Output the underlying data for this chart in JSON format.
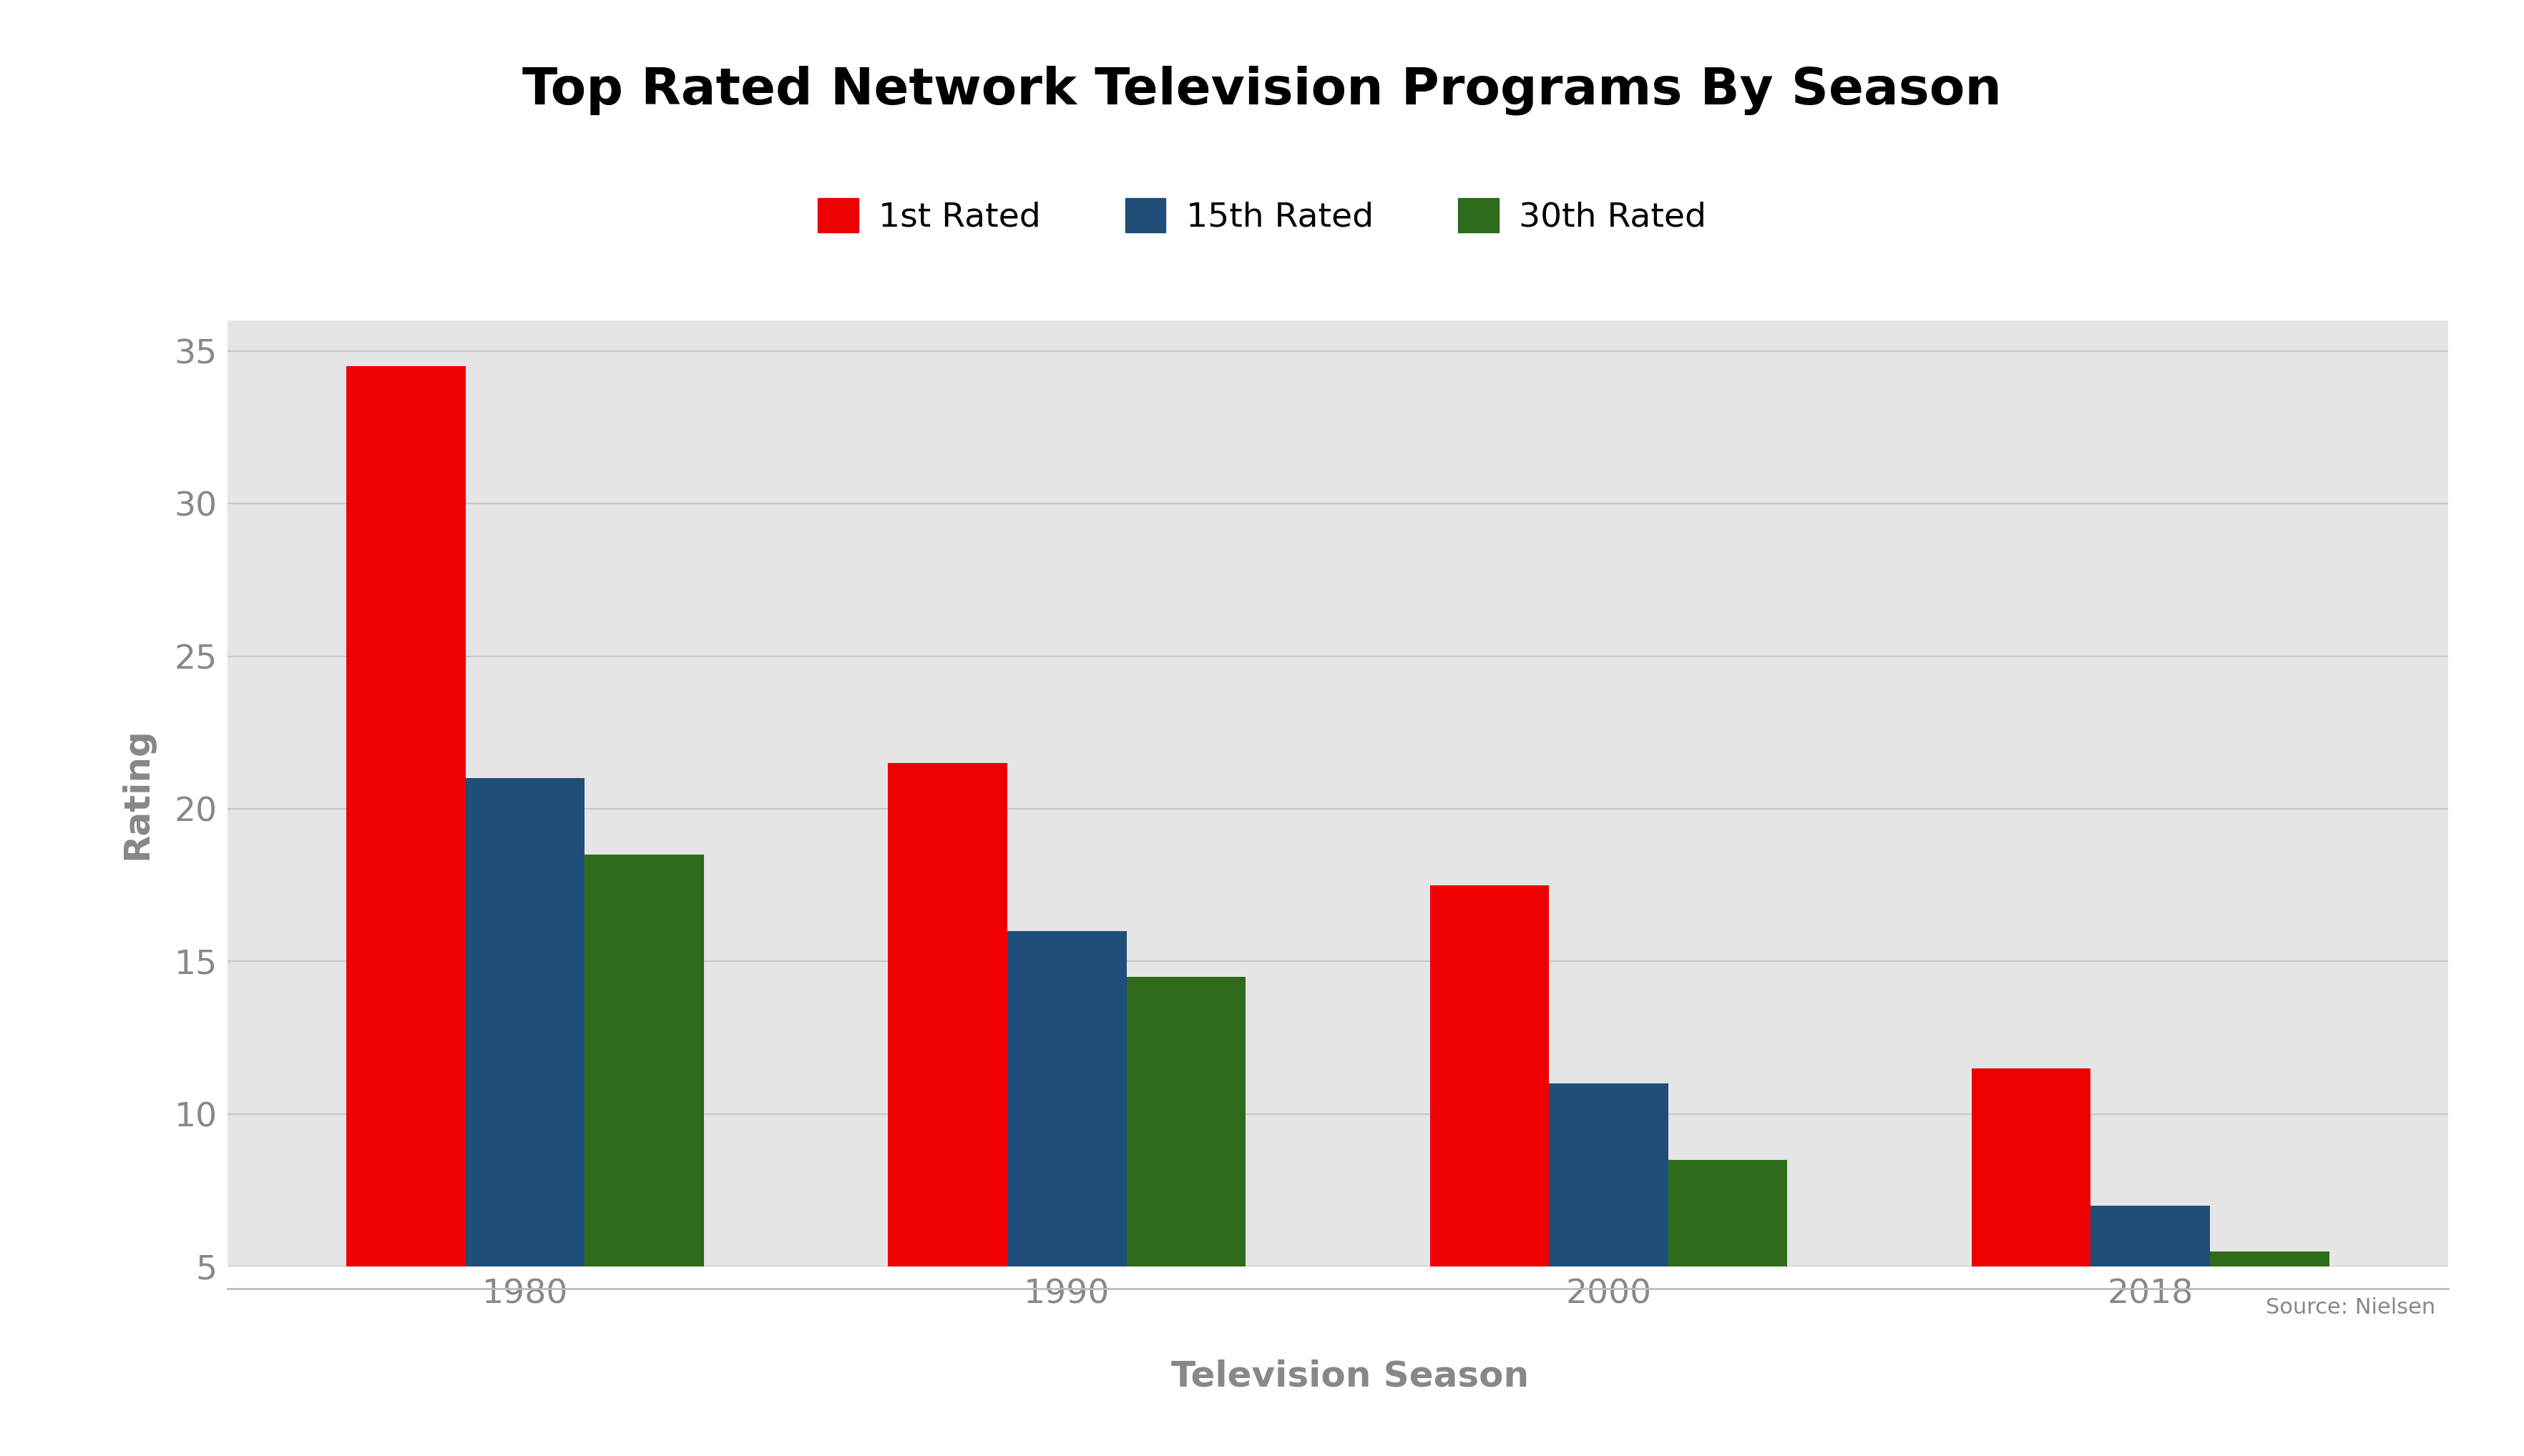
{
  "title": "Top Rated Network Television Programs By Season",
  "xlabel": "Television Season",
  "ylabel": "Rating",
  "categories": [
    "1980",
    "1990",
    "2000",
    "2018"
  ],
  "series": {
    "1st Rated": [
      34.5,
      21.5,
      17.5,
      11.5
    ],
    "15th Rated": [
      21.0,
      16.0,
      11.0,
      7.0
    ],
    "30th Rated": [
      18.5,
      14.5,
      8.5,
      5.5
    ]
  },
  "colors": {
    "1st Rated": "#EE0000",
    "15th Rated": "#1F4E79",
    "30th Rated": "#2E6B1A"
  },
  "ylim": [
    5,
    36
  ],
  "yticks": [
    5,
    10,
    15,
    20,
    25,
    30,
    35
  ],
  "bar_width": 0.22,
  "background_color": "#E5E5E5",
  "figure_background": "#FFFFFF",
  "title_fontsize": 52,
  "axis_label_fontsize": 36,
  "tick_fontsize": 34,
  "legend_fontsize": 34,
  "source_text": "Source: Nielsen",
  "source_fontsize": 22,
  "grid_color": "#C8C8C8"
}
